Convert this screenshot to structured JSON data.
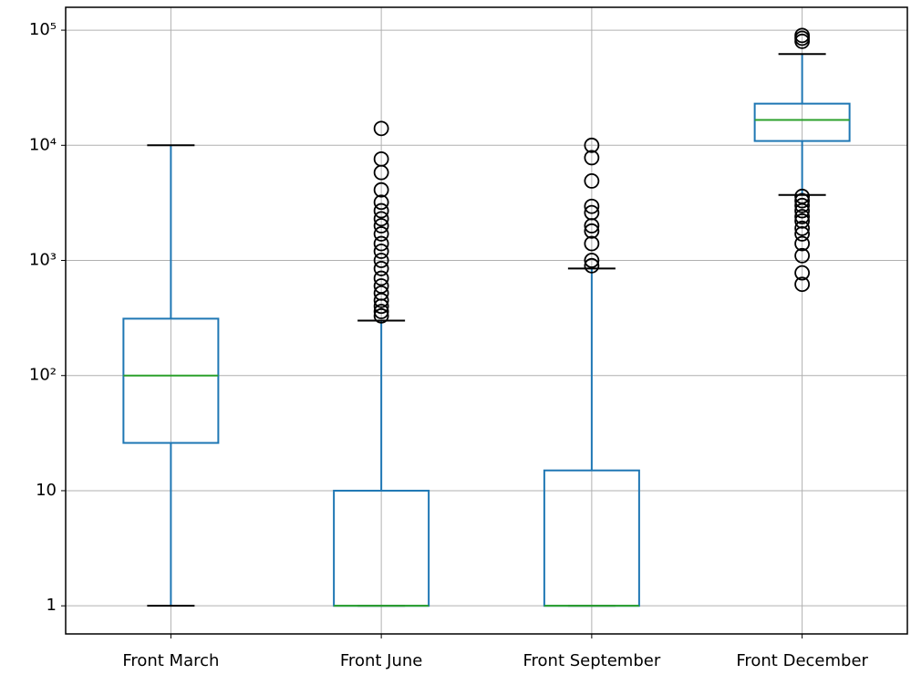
{
  "chart_data": {
    "type": "box",
    "log_y": true,
    "grid": true,
    "categories": [
      "Front March",
      "Front June",
      "Front September",
      "Front December"
    ],
    "box_color": "#1f77b4",
    "median_color": "#2ca02c",
    "whisker_color": "#1f77b4",
    "cap_color": "#000000",
    "flier_color": "#000000",
    "boxes": [
      {
        "whisker_low": 1,
        "q1": 26,
        "median": 100,
        "q3": 312,
        "whisker_high": 10000,
        "outliers": []
      },
      {
        "whisker_low": 1,
        "q1": 1,
        "median": 1,
        "q3": 10,
        "whisker_high": 300,
        "outliers": [
          14000,
          7600,
          5800,
          4100,
          3200,
          2700,
          2300,
          2000,
          1700,
          1400,
          1200,
          1000,
          850,
          700,
          600,
          520,
          450,
          400,
          360,
          330
        ]
      },
      {
        "whisker_low": 1,
        "q1": 1,
        "median": 1,
        "q3": 15,
        "whisker_high": 850,
        "outliers": [
          10000,
          7800,
          4900,
          2950,
          2600,
          2000,
          1800,
          1400,
          1000,
          900
        ]
      },
      {
        "whisker_low": 3700,
        "q1": 10900,
        "median": 16600,
        "q3": 23000,
        "whisker_high": 62000,
        "outliers": [
          90000,
          85000,
          80000,
          3600,
          3300,
          3000,
          2700,
          2400,
          2200,
          1900,
          1700,
          1400,
          1100,
          780,
          620
        ]
      }
    ],
    "ylim": [
      0.57,
      158000
    ],
    "yticks": [
      1,
      10,
      {
        "value": 100,
        "label": "10²"
      },
      {
        "value": 1000,
        "label": "10³"
      },
      {
        "value": 10000,
        "label": "10⁴"
      },
      {
        "value": 100000,
        "label": "10⁵"
      }
    ]
  }
}
